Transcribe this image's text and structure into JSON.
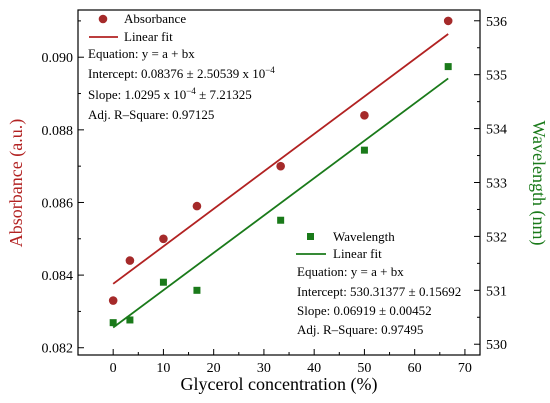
{
  "chart_data": {
    "type": "scatter",
    "xlabel": "Glycerol concentration (%)",
    "ylabel_left": "Absorbance (a.u.)",
    "ylabel_right": "Wavelength (nm)",
    "xlim": [
      -7,
      73
    ],
    "ylim_left": [
      0.0818,
      0.0913
    ],
    "ylim_right": [
      529.8,
      536.2
    ],
    "x_ticks": [
      0,
      10,
      20,
      30,
      40,
      50,
      60,
      70
    ],
    "x_tick_labels": [
      "0",
      "10",
      "20",
      "30",
      "40",
      "50",
      "60",
      "70"
    ],
    "y_left_ticks": [
      0.082,
      0.084,
      0.086,
      0.088,
      0.09
    ],
    "y_left_tick_labels": [
      "0.082",
      "0.084",
      "0.086",
      "0.088",
      "0.090"
    ],
    "y_right_ticks": [
      530,
      531,
      532,
      533,
      534,
      535,
      536
    ],
    "y_right_tick_labels": [
      "530",
      "531",
      "532",
      "533",
      "534",
      "535",
      "536"
    ],
    "grid": false,
    "series": [
      {
        "name": "Absorbance",
        "axis": "left",
        "marker": "circle",
        "color": "#a52a2a",
        "x": [
          0,
          3.33,
          10,
          16.67,
          33.33,
          50,
          66.67
        ],
        "y": [
          0.0833,
          0.0844,
          0.085,
          0.0859,
          0.087,
          0.0884,
          0.091
        ],
        "fit": {
          "name": "Linear fit",
          "color": "#b22222",
          "x": [
            0,
            66.67
          ],
          "y": [
            0.08376,
            0.09064
          ]
        }
      },
      {
        "name": "Wavelength",
        "axis": "right",
        "marker": "square",
        "color": "#1a7a1a",
        "x": [
          0,
          3.33,
          10,
          16.67,
          33.33,
          50,
          66.67
        ],
        "y": [
          530.4,
          530.45,
          531.15,
          531.0,
          532.3,
          533.6,
          535.15
        ],
        "fit": {
          "name": "Linear fit",
          "color": "#1a7a1a",
          "x": [
            0,
            66.67
          ],
          "y": [
            530.31,
            534.93
          ]
        }
      }
    ],
    "annotations": {
      "absorbance": [
        "Equation: y = a + bx",
        "Intercept: 0.08376 ± 2.50539 x 10",
        "Slope: 1.0295 x 10",
        "Adj. R–Square: 0.97125"
      ],
      "absorbance_intercept_exp": "−4",
      "absorbance_slope_exp": "−4",
      "absorbance_slope_tail": " ± 7.21325",
      "wavelength": [
        "Equation: y = a + bx",
        "Intercept: 530.31377 ± 0.15692",
        "Slope: 0.06919 ± 0.00452",
        "Adj. R–Square: 0.97495"
      ]
    },
    "colors": {
      "axis_left": "#b22222",
      "axis_right": "#1a7a1a"
    }
  }
}
